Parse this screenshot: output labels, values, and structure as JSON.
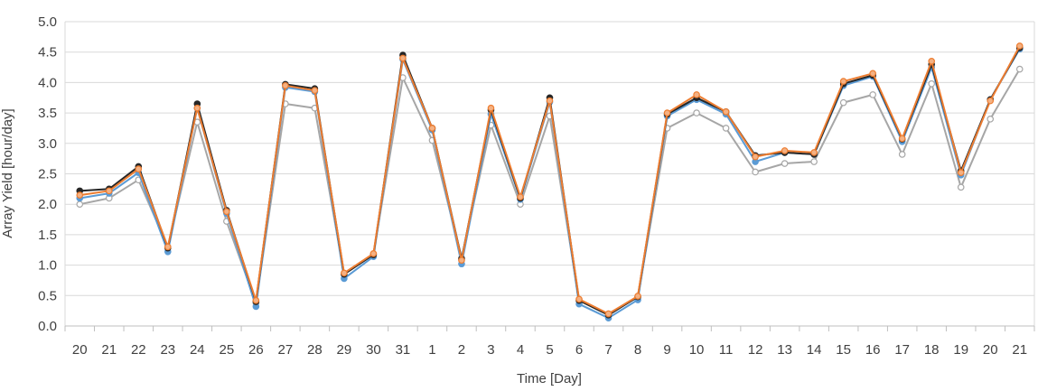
{
  "chart_data": {
    "type": "line",
    "xlabel": "Time [Day]",
    "ylabel": "Array Yield [hour/day]",
    "ylim": [
      0,
      5
    ],
    "yticks": [
      "0.0",
      "0.5",
      "1.0",
      "1.5",
      "2.0",
      "2.5",
      "3.0",
      "3.5",
      "4.0",
      "4.5",
      "5.0"
    ],
    "categories": [
      "20",
      "21",
      "22",
      "23",
      "24",
      "25",
      "26",
      "27",
      "28",
      "29",
      "30",
      "31",
      "1",
      "2",
      "3",
      "4",
      "5",
      "6",
      "7",
      "8",
      "9",
      "10",
      "11",
      "12",
      "13",
      "14",
      "15",
      "16",
      "17",
      "18",
      "19",
      "20",
      "21"
    ],
    "grid": "horizontal",
    "legend": "none",
    "series": [
      {
        "color": "#a6a6a6",
        "marker_fill": "#ffffff",
        "values": [
          2.0,
          2.1,
          2.4,
          1.3,
          3.35,
          1.72,
          0.38,
          3.65,
          3.58,
          0.85,
          1.18,
          4.08,
          3.05,
          1.12,
          3.3,
          2.0,
          3.45,
          0.42,
          0.2,
          0.47,
          3.25,
          3.5,
          3.25,
          2.53,
          2.67,
          2.7,
          3.67,
          3.8,
          2.82,
          3.98,
          2.28,
          3.4,
          4.22
        ]
      },
      {
        "color": "#5b9bd5",
        "marker_fill": "#5b9bd5",
        "values": [
          2.1,
          2.18,
          2.52,
          1.22,
          3.58,
          1.85,
          0.32,
          3.92,
          3.85,
          0.78,
          1.14,
          4.38,
          3.22,
          1.02,
          3.48,
          2.08,
          3.68,
          0.36,
          0.13,
          0.43,
          3.45,
          3.72,
          3.48,
          2.7,
          2.85,
          2.82,
          3.95,
          4.1,
          3.03,
          4.25,
          2.48,
          3.72,
          4.55
        ]
      },
      {
        "color": "#262626",
        "marker_fill": "#262626",
        "values": [
          2.22,
          2.25,
          2.62,
          1.28,
          3.65,
          1.9,
          0.4,
          3.97,
          3.9,
          0.85,
          1.17,
          4.45,
          3.25,
          1.1,
          3.55,
          2.1,
          3.75,
          0.42,
          0.18,
          0.48,
          3.48,
          3.75,
          3.52,
          2.8,
          2.85,
          2.82,
          3.98,
          4.12,
          3.07,
          4.3,
          2.55,
          3.72,
          4.57
        ]
      },
      {
        "color": "#ed7d31",
        "marker_fill": "#f4b183",
        "values": [
          2.15,
          2.22,
          2.58,
          1.3,
          3.58,
          1.88,
          0.42,
          3.95,
          3.87,
          0.87,
          1.19,
          4.4,
          3.25,
          1.08,
          3.58,
          2.12,
          3.7,
          0.44,
          0.2,
          0.49,
          3.5,
          3.8,
          3.52,
          2.78,
          2.88,
          2.85,
          4.02,
          4.15,
          3.08,
          4.35,
          2.52,
          3.7,
          4.6
        ]
      }
    ]
  }
}
